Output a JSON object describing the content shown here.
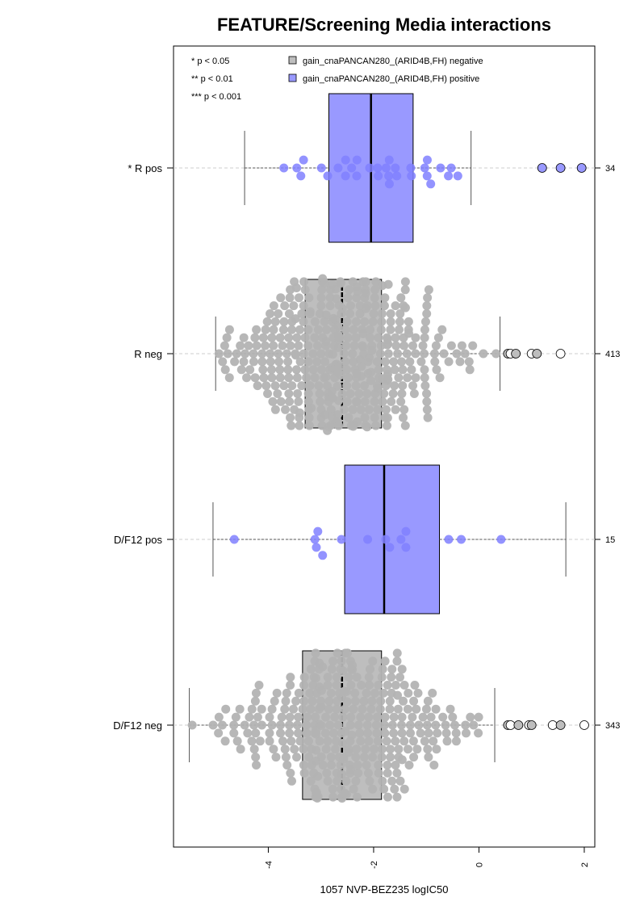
{
  "chart_data": {
    "type": "boxplot-beeswarm",
    "title": "FEATURE/Screening Media interactions",
    "xlabel": "1057 NVP-BEZ235 logIC50",
    "xlim": [
      -5.8,
      2.2
    ],
    "xticks": [
      -4,
      -2,
      0,
      2
    ],
    "xtick_labels": [
      "-4",
      "-2",
      "0",
      "2"
    ],
    "significance_legend": [
      "* p < 0.05",
      "** p < 0.01",
      "*** p < 0.001"
    ],
    "legend": [
      {
        "label": "gain_cnaPANCAN280_(ARID4B,FH) negative",
        "color": "#bebebe"
      },
      {
        "label": "gain_cnaPANCAN280_(ARID4B,FH) positive",
        "color": "#9999ff"
      }
    ],
    "groups": [
      {
        "label": "* R pos",
        "n": "34",
        "status": "positive",
        "box": {
          "whisker_low": -4.45,
          "q1": -2.85,
          "median": -2.05,
          "q3": -1.25,
          "whisker_high": -0.15
        },
        "outliers": [
          1.2,
          1.55,
          1.95
        ]
      },
      {
        "label": "R neg",
        "n": "413",
        "status": "negative",
        "box": {
          "whisker_low": -5.0,
          "q1": -3.3,
          "median": -2.6,
          "q3": -1.85,
          "whisker_high": 0.4
        },
        "outliers": [
          0.55,
          0.6,
          0.7,
          1.0,
          1.1,
          1.55
        ]
      },
      {
        "label": "D/F12 pos",
        "n": "15",
        "status": "positive",
        "box": {
          "whisker_low": -5.05,
          "q1": -2.55,
          "median": -1.8,
          "q3": -0.75,
          "whisker_high": 1.65
        },
        "outliers": []
      },
      {
        "label": "D/F12 neg",
        "n": "343",
        "status": "negative",
        "box": {
          "whisker_low": -5.5,
          "q1": -3.35,
          "median": -2.6,
          "q3": -1.85,
          "whisker_high": 0.3
        },
        "outliers": [
          0.55,
          0.6,
          0.75,
          0.95,
          1.0,
          1.4,
          1.55,
          2.0
        ]
      }
    ]
  },
  "colors": {
    "positive_fill": "#9999ff",
    "positive_point": "#8080ff",
    "negative_fill": "#bebebe",
    "negative_point": "#b3b3b3",
    "axis": "#000000",
    "guide": "#cccccc"
  }
}
